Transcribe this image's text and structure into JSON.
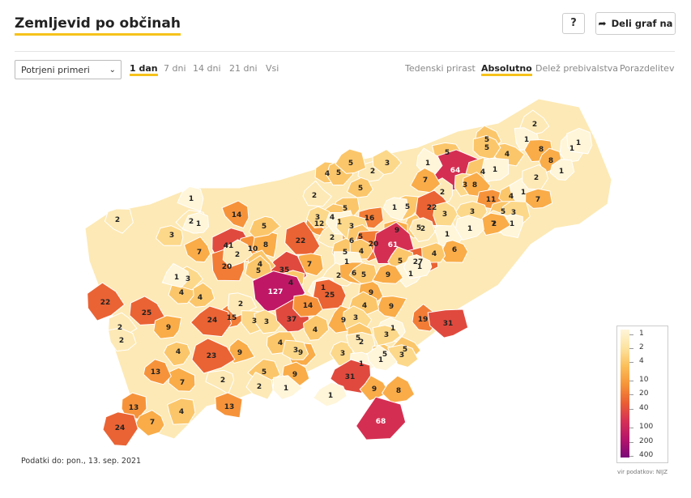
{
  "header": {
    "title": "Zemljevid po občinah",
    "help_label": "?",
    "share_label": "Deli graf na"
  },
  "controls": {
    "metric_select": "Potrjeni primeri",
    "periods": [
      "1 dan",
      "7 dni",
      "14 dni",
      "21 dni",
      "Vsi"
    ],
    "active_period": "1 dan",
    "modes": [
      "Tedenski prirast",
      "Absolutno",
      "Delež prebivalstva",
      "Porazdelitev"
    ],
    "active_mode": "Absolutno"
  },
  "legend": {
    "labels": [
      "1",
      "2",
      "4",
      "10",
      "20",
      "40",
      "100",
      "200",
      "400"
    ],
    "colors": [
      "#fff5d9",
      "#fde3a0",
      "#fbbf5a",
      "#f69439",
      "#ea5f33",
      "#d63055",
      "#b5146a",
      "#7a0a78"
    ]
  },
  "map_data": {
    "values": [
      "2",
      "1",
      "5",
      "4",
      "5",
      "8",
      "1",
      "1",
      "8",
      "1",
      "5",
      "64",
      "4",
      "1",
      "3",
      "8",
      "11",
      "4",
      "1",
      "2",
      "5",
      "3",
      "7",
      "2",
      "1",
      "7",
      "4",
      "5",
      "2",
      "3",
      "5",
      "1",
      "2",
      "1",
      "2",
      "2",
      "2",
      "7",
      "5",
      "3",
      "1",
      "1",
      "14",
      "5",
      "16",
      "1",
      "5",
      "22",
      "3",
      "2",
      "6",
      "12",
      "5",
      "4",
      "6",
      "2",
      "22",
      "41",
      "10",
      "8",
      "3",
      "1",
      "3",
      "5",
      "9",
      "20",
      "61",
      "27",
      "5",
      "4",
      "1",
      "5",
      "4",
      "1",
      "7",
      "35",
      "4",
      "2",
      "6",
      "5",
      "9",
      "1",
      "5",
      "1",
      "20",
      "4",
      "9",
      "1",
      "5",
      "127",
      "25",
      "4",
      "4",
      "3",
      "7",
      "2",
      "3",
      "25",
      "1",
      "9",
      "15",
      "24",
      "2",
      "3",
      "3",
      "4",
      "37",
      "4",
      "9",
      "3",
      "5",
      "19",
      "31",
      "2",
      "9",
      "1",
      "3",
      "2",
      "4",
      "9",
      "23",
      "9",
      "4",
      "3",
      "3",
      "2",
      "5",
      "5",
      "1",
      "3",
      "1",
      "31",
      "9",
      "5",
      "7",
      "13",
      "2",
      "2",
      "1",
      "1",
      "9",
      "8",
      "4",
      "13",
      "13",
      "7",
      "24",
      "68",
      "14",
      "22"
    ],
    "source": "vir podatkov: NIJZ"
  },
  "footer": {
    "updated": "Podatki do: pon., 13. sep. 2021"
  }
}
